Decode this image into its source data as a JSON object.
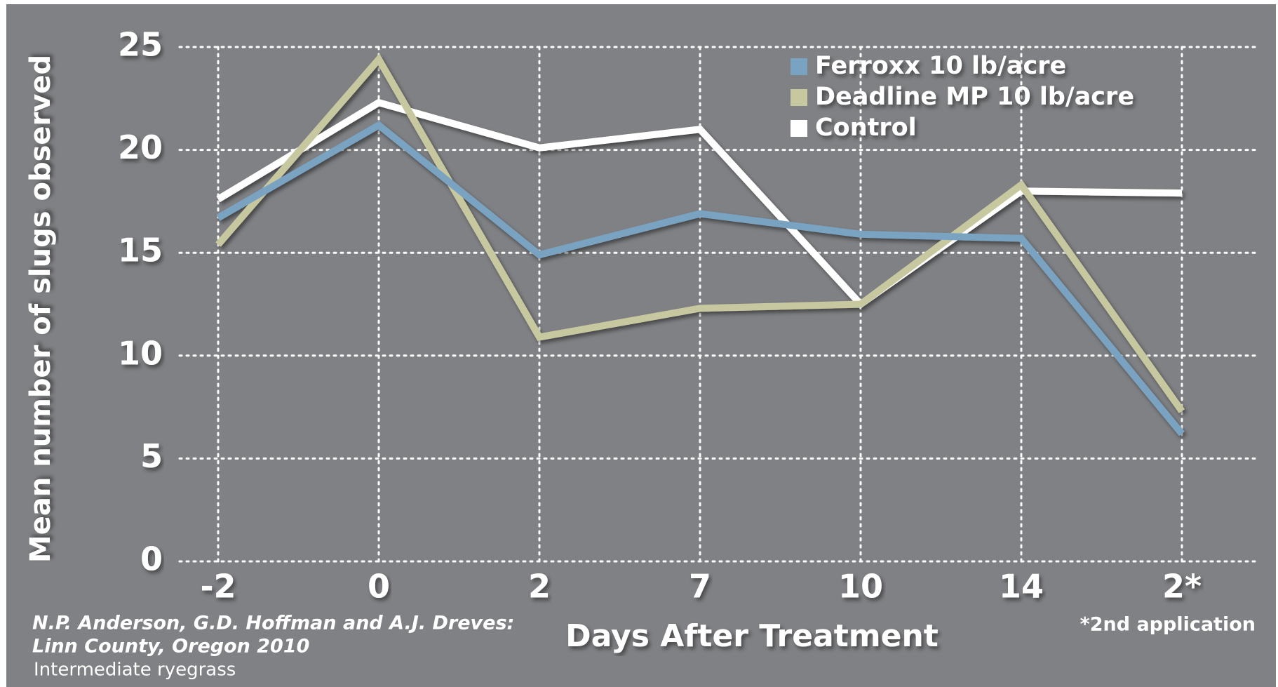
{
  "chart_data": {
    "type": "line",
    "x_label": "Days After Treatment",
    "y_label": "Mean number of slugs observed",
    "categories": [
      "-2",
      "0",
      "2",
      "7",
      "10",
      "14",
      "2*"
    ],
    "series": [
      {
        "name": "Ferroxx 10 lb/acre",
        "color": "#7aa3c2",
        "values": [
          16.7,
          21.2,
          14.9,
          16.9,
          15.9,
          15.7,
          6.2
        ]
      },
      {
        "name": "Deadline MP 10 lb/acre",
        "color": "#c8c8a0",
        "values": [
          15.4,
          24.4,
          10.9,
          12.3,
          12.5,
          18.3,
          7.3
        ]
      },
      {
        "name": "Control",
        "color": "#ffffff",
        "values": [
          17.6,
          22.3,
          20.1,
          21.0,
          12.5,
          18.0,
          17.9
        ]
      }
    ],
    "ylim": [
      0,
      25
    ],
    "yticks": [
      0,
      5,
      10,
      15,
      20,
      25
    ],
    "grid": true,
    "annotations": [
      "N.P. Anderson, G.D. Hoffman and A.J. Dreves:",
      "Linn County, Oregon 2010",
      "Intermediate ryegrass",
      "*2nd application"
    ]
  }
}
